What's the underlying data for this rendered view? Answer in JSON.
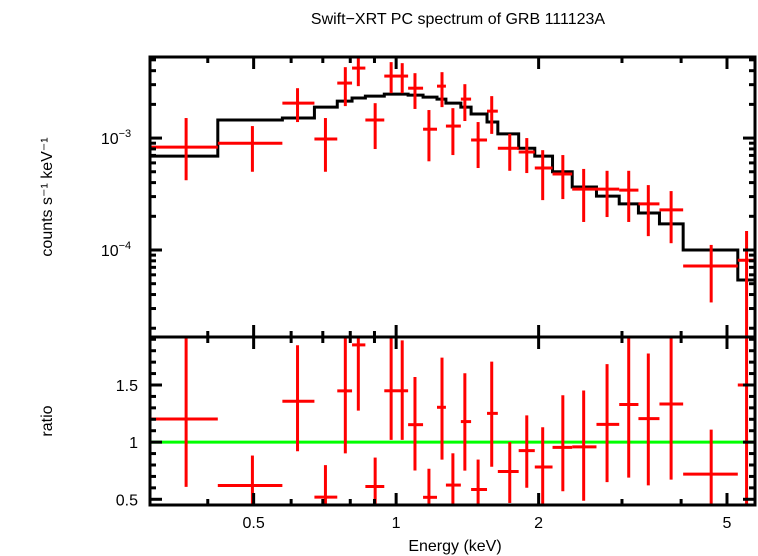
{
  "chart_data": {
    "type": "scatter",
    "title": "Swift−XRT PC spectrum of GRB 111123A",
    "xlabel": "Energy (keV)",
    "ylabel_top": "counts s⁻¹ keV⁻¹",
    "ylabel_bottom": "ratio",
    "xscale": "log",
    "xlim": [
      0.302,
      5.73
    ],
    "top_yscale": "log",
    "top_ylim": [
      1.67e-05,
      0.0053
    ],
    "bottom_ylim": [
      0.45,
      1.92
    ],
    "x_tick_labels": [
      {
        "v": 0.5,
        "t": "0.5"
      },
      {
        "v": 1,
        "t": "1"
      },
      {
        "v": 2,
        "t": "2"
      },
      {
        "v": 5,
        "t": "5"
      }
    ],
    "x_minor_ticks": [
      0.4,
      0.6,
      0.7,
      0.8,
      0.9,
      3,
      4
    ],
    "top_y_tick_labels": [
      {
        "v": 0.001,
        "base": "10",
        "exp": "−3"
      },
      {
        "v": 0.0001,
        "base": "10",
        "exp": "−4"
      }
    ],
    "bottom_y_tick_labels": [
      {
        "v": 0.5,
        "t": "0.5"
      },
      {
        "v": 1,
        "t": "1"
      },
      {
        "v": 1.5,
        "t": "1.5"
      }
    ],
    "bin_edges": [
      0.302,
      0.42,
      0.575,
      0.672,
      0.751,
      0.807,
      0.861,
      0.944,
      1.014,
      1.06,
      1.14,
      1.22,
      1.274,
      1.37,
      1.44,
      1.556,
      1.64,
      1.815,
      1.963,
      2.14,
      2.355,
      2.65,
      2.96,
      3.25,
      3.6,
      4.04,
      5.27,
      5.73
    ],
    "energy": [
      0.36,
      0.497,
      0.619,
      0.709,
      0.781,
      0.832,
      0.903,
      0.976,
      1.03,
      1.096,
      1.173,
      1.25,
      1.318,
      1.397,
      1.49,
      1.592,
      1.738,
      1.888,
      2.04,
      2.25,
      2.49,
      2.79,
      3.1,
      3.41,
      3.81,
      4.63,
      5.5
    ],
    "series": [
      {
        "name": "data",
        "color": "#ff0000",
        "values": [
          0.00083,
          0.0009,
          0.00205,
          0.00098,
          0.0031,
          0.00422,
          0.00145,
          0.00358,
          0.00358,
          0.00279,
          0.0012,
          0.00291,
          0.00128,
          0.00223,
          0.00096,
          0.00174,
          0.00081,
          0.00075,
          0.00054,
          0.000477,
          0.00035,
          0.00035,
          0.000343,
          0.000258,
          0.000228,
          7.2e-05,
          8.1e-05
        ],
        "err_low": [
          0.00042,
          0.0005,
          0.00139,
          0.0005,
          0.00193,
          0.00291,
          0.000798,
          0.00252,
          0.00252,
          0.00182,
          0.00062,
          0.00189,
          0.000705,
          0.00142,
          0.00054,
          0.00109,
          0.00051,
          0.000487,
          0.000279,
          0.000285,
          0.000178,
          0.000197,
          0.000178,
          0.000133,
          0.000115,
          3.4e-05,
          1e-06
        ],
        "err_high": [
          0.00151,
          0.00128,
          0.00279,
          0.00151,
          0.0043,
          0.0055,
          0.00205,
          0.00477,
          0.00467,
          0.0038,
          0.00178,
          0.00388,
          0.00185,
          0.00303,
          0.00139,
          0.00237,
          0.00109,
          0.001,
          0.00078,
          0.000705,
          0.00053,
          0.00051,
          0.00051,
          0.00038,
          0.000336,
          0.000111,
          0.000148
        ]
      },
      {
        "name": "model",
        "color": "#000000",
        "values": [
          0.00069,
          0.00145,
          0.00151,
          0.00189,
          0.00214,
          0.00228,
          0.00237,
          0.00247,
          0.00247,
          0.00242,
          0.00232,
          0.00223,
          0.00205,
          0.00189,
          0.00164,
          0.00139,
          0.00109,
          0.00081,
          0.00069,
          0.0005,
          0.000365,
          0.000303,
          0.000258,
          0.000214,
          0.000171,
          0.0001,
          5.4e-05
        ]
      },
      {
        "name": "ratio_reference",
        "color": "#00ff00",
        "value": 1
      }
    ]
  }
}
